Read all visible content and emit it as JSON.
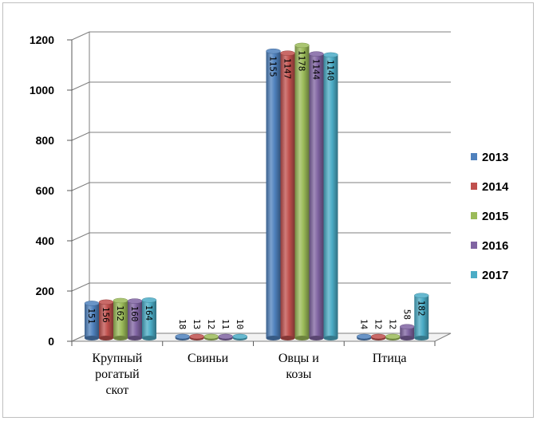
{
  "chart_data": {
    "type": "bar",
    "title": "",
    "xlabel": "",
    "ylabel": "",
    "categories": [
      "Крупный рогатый скот",
      "Свиньи",
      "Овцы и козы",
      "Птица"
    ],
    "category_lines": [
      [
        "Крупный",
        "рогатый",
        "скот"
      ],
      [
        "Свиньи"
      ],
      [
        "Овцы и",
        "козы"
      ],
      [
        "Птица"
      ]
    ],
    "series": [
      {
        "name": "2013",
        "color": "#4f81bd",
        "values": [
          151,
          18,
          1155,
          14
        ]
      },
      {
        "name": "2014",
        "color": "#c0504d",
        "values": [
          156,
          13,
          1147,
          12
        ]
      },
      {
        "name": "2015",
        "color": "#9bbb59",
        "values": [
          162,
          12,
          1178,
          12
        ]
      },
      {
        "name": "2016",
        "color": "#8064a2",
        "values": [
          160,
          11,
          1144,
          58
        ]
      },
      {
        "name": "2017",
        "color": "#4bacc6",
        "values": [
          164,
          10,
          1140,
          182
        ]
      }
    ],
    "ylim": [
      0,
      1200
    ],
    "yticks": [
      "0",
      "200",
      "400",
      "600",
      "800",
      "1000",
      "1200"
    ],
    "grid": true,
    "legend_position": "right",
    "data_labels": true,
    "style": "3d-cylinder"
  }
}
